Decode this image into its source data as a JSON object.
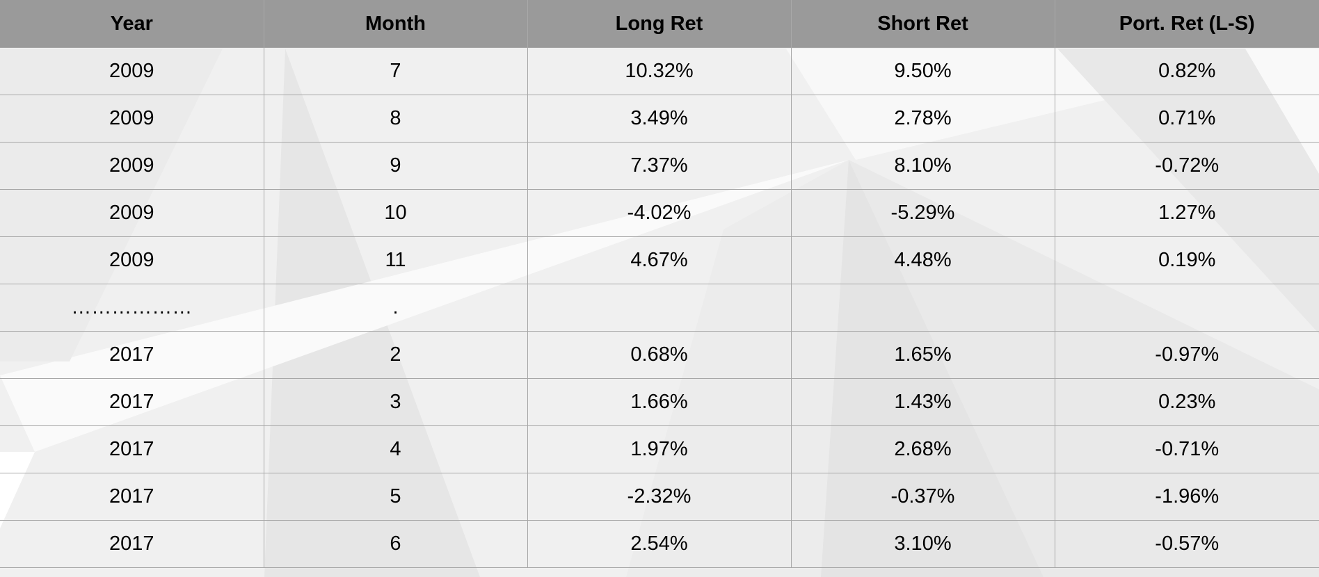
{
  "table": {
    "headers": [
      "Year",
      "Month",
      "Long Ret",
      "Short Ret",
      "Port. Ret (L-S)"
    ],
    "rows": [
      [
        "2009",
        "7",
        "10.32%",
        "9.50%",
        "0.82%"
      ],
      [
        "2009",
        "8",
        "3.49%",
        "2.78%",
        "0.71%"
      ],
      [
        "2009",
        "9",
        "7.37%",
        "8.10%",
        "-0.72%"
      ],
      [
        "2009",
        "10",
        "-4.02%",
        "-5.29%",
        "1.27%"
      ],
      [
        "2009",
        "11",
        "4.67%",
        "4.48%",
        "0.19%"
      ],
      [
        "………………",
        ".",
        "",
        "",
        ""
      ],
      [
        "2017",
        "2",
        "0.68%",
        "1.65%",
        "-0.97%"
      ],
      [
        "2017",
        "3",
        "1.66%",
        "1.43%",
        "0.23%"
      ],
      [
        "2017",
        "4",
        "1.97%",
        "2.68%",
        "-0.71%"
      ],
      [
        "2017",
        "5",
        "-2.32%",
        "-0.37%",
        "-1.96%"
      ],
      [
        "2017",
        "6",
        "2.54%",
        "3.10%",
        "-0.57%"
      ]
    ]
  },
  "colors": {
    "header_bg": "#999999",
    "grid_line": "#a7a7a7",
    "page_bg": "#f1f1f1"
  }
}
